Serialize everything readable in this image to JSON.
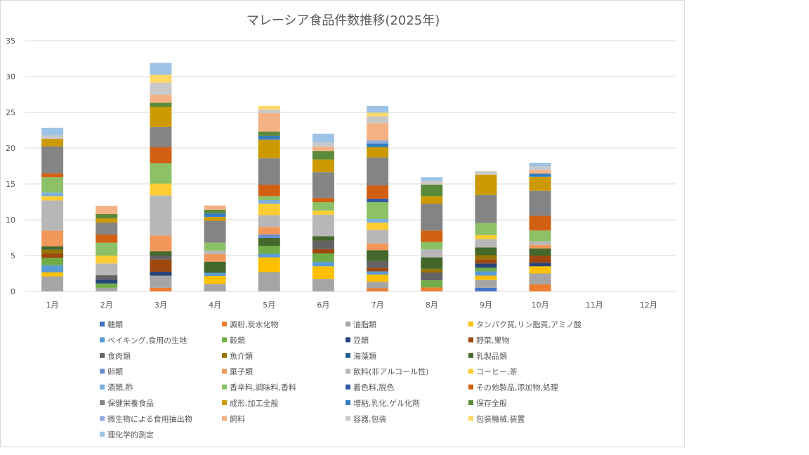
{
  "chart_data": {
    "type": "bar",
    "stacked": true,
    "title": "マレーシア食品件数推移(2025年)",
    "xlabel": "",
    "ylabel": "",
    "ylim": [
      0,
      35
    ],
    "yticks": [
      0,
      5,
      10,
      15,
      20,
      25,
      30,
      35
    ],
    "grid": true,
    "legend_position": "bottom",
    "categories": [
      "1月",
      "2月",
      "3月",
      "4月",
      "5月",
      "6月",
      "7月",
      "8月",
      "9月",
      "10月",
      "11月",
      "12月"
    ],
    "series": [
      {
        "name": "糖類",
        "color": "#4472C4",
        "values": [
          0,
          0,
          0,
          0,
          0,
          0,
          0,
          0,
          0.5,
          0,
          0,
          0
        ]
      },
      {
        "name": "澱粉,炭水化物",
        "color": "#ED7D31",
        "values": [
          0,
          0,
          0.5,
          0,
          0,
          0,
          0.45,
          0.55,
          0,
          1.0,
          0,
          0
        ]
      },
      {
        "name": "油脂類",
        "color": "#A5A5A5",
        "values": [
          2.1,
          0.5,
          1.7,
          1.05,
          2.7,
          1.75,
          0.9,
          0,
          1.1,
          1.5,
          0,
          0
        ]
      },
      {
        "name": "タンパク質,リン脂質,アミノ酸",
        "color": "#FFC000",
        "values": [
          0.55,
          0,
          0,
          1.1,
          2.05,
          1.75,
          1.0,
          0,
          0.6,
          1.0,
          0,
          0
        ]
      },
      {
        "name": "ベイキング,食用の生地",
        "color": "#5B9BD5",
        "values": [
          1.0,
          0,
          0,
          0.45,
          0.5,
          0.6,
          0.45,
          0,
          0.6,
          0,
          0,
          0
        ]
      },
      {
        "name": "穀類",
        "color": "#70AD47",
        "values": [
          1.05,
          0.6,
          0,
          0,
          1.1,
          1.2,
          0,
          1.0,
          0.5,
          0,
          0,
          0
        ]
      },
      {
        "name": "豆類",
        "color": "#264478",
        "values": [
          0,
          0.55,
          0.55,
          0,
          0,
          0,
          0,
          0,
          0.6,
          0.5,
          0,
          0
        ]
      },
      {
        "name": "野菜,果物",
        "color": "#9E480E",
        "values": [
          0.6,
          0,
          1.7,
          0,
          0,
          0.6,
          0.5,
          0,
          0.55,
          1.0,
          0,
          0
        ]
      },
      {
        "name": "食肉類",
        "color": "#636363",
        "values": [
          0,
          0.6,
          0.55,
          0,
          0,
          1.2,
          0.95,
          1.1,
          0,
          0,
          0,
          0
        ]
      },
      {
        "name": "魚介類",
        "color": "#997300",
        "values": [
          0.5,
          0,
          0,
          0,
          0,
          0,
          0,
          0.5,
          0.6,
          0,
          0,
          0
        ]
      },
      {
        "name": "海藻類",
        "color": "#255E91",
        "values": [
          0,
          0,
          0,
          0,
          0,
          0,
          0,
          0,
          0,
          0,
          0,
          0
        ]
      },
      {
        "name": "乳製品類",
        "color": "#43682B",
        "values": [
          0.5,
          0,
          0.6,
          1.55,
          1.1,
          0.6,
          1.5,
          1.6,
          1.1,
          1.0,
          0,
          0
        ]
      },
      {
        "name": "卵類",
        "color": "#698ED0",
        "values": [
          0,
          0,
          0,
          0,
          0.5,
          0,
          0,
          0,
          0,
          0,
          0,
          0
        ]
      },
      {
        "name": "菓子類",
        "color": "#F1975A",
        "values": [
          2.2,
          0,
          2.2,
          1.05,
          1.05,
          0,
          0.95,
          0,
          0,
          0.5,
          0,
          0
        ]
      },
      {
        "name": "飲料(非アルコール性)",
        "color": "#B7B7B7",
        "values": [
          4.2,
          1.65,
          5.6,
          0.5,
          1.65,
          3.0,
          1.9,
          1.1,
          1.15,
          0.5,
          0,
          0
        ]
      },
      {
        "name": "コーヒー,茶",
        "color": "#FFCD33",
        "values": [
          0.6,
          1.1,
          1.65,
          0,
          1.6,
          0.6,
          1.0,
          0,
          0.55,
          0,
          0,
          0
        ]
      },
      {
        "name": "酒類,酢",
        "color": "#7CAFDD",
        "values": [
          0.5,
          0,
          0,
          0,
          0.5,
          0,
          0.5,
          0,
          0,
          0,
          0,
          0
        ]
      },
      {
        "name": "香辛料,調味料,香料",
        "color": "#8CC168",
        "values": [
          2.15,
          1.8,
          2.85,
          1.1,
          0.55,
          1.15,
          2.35,
          1.05,
          1.7,
          1.5,
          0,
          0
        ]
      },
      {
        "name": "着色料,脱色",
        "color": "#335AA1",
        "values": [
          0,
          0,
          0,
          0,
          0,
          0,
          0.5,
          0,
          0,
          0,
          0,
          0
        ]
      },
      {
        "name": "その他製品,添加物,処理",
        "color": "#D26012",
        "values": [
          0.55,
          1.15,
          2.25,
          0,
          1.6,
          0.6,
          1.85,
          1.6,
          0,
          2.05,
          0,
          0
        ]
      },
      {
        "name": "保健栄養食品",
        "color": "#848484",
        "values": [
          3.75,
          1.65,
          2.8,
          3.05,
          3.7,
          3.6,
          3.9,
          3.75,
          3.9,
          3.5,
          0,
          0
        ]
      },
      {
        "name": "成形,加工全般",
        "color": "#CC9A00",
        "values": [
          1.05,
          0.6,
          2.8,
          0.55,
          2.6,
          1.75,
          1.45,
          1.05,
          2.85,
          1.95,
          0,
          0
        ]
      },
      {
        "name": "増粘,乳化,ゲル化剤",
        "color": "#327DC2",
        "values": [
          0,
          0,
          0,
          0.5,
          0.5,
          0,
          0.5,
          0,
          0,
          0.45,
          0,
          0
        ]
      },
      {
        "name": "保存全般",
        "color": "#5A8A39",
        "values": [
          0,
          0.6,
          0.6,
          0.5,
          0.6,
          1.2,
          0,
          1.6,
          0,
          0,
          0,
          0
        ]
      },
      {
        "name": "微生物による食用抽出物",
        "color": "#8FAADC",
        "values": [
          0,
          0,
          0,
          0,
          0,
          0,
          0.45,
          0,
          0,
          0,
          0,
          0
        ]
      },
      {
        "name": "飼料",
        "color": "#F4B183",
        "values": [
          0,
          1.15,
          1.1,
          0.6,
          2.6,
          0.6,
          2.4,
          0,
          0,
          0.5,
          0,
          0
        ]
      },
      {
        "name": "容器,包装",
        "color": "#C9C9C9",
        "values": [
          0.5,
          0,
          1.7,
          0,
          0.5,
          0.6,
          0.95,
          0.55,
          0.5,
          0.5,
          0,
          0
        ]
      },
      {
        "name": "包装機械,装置",
        "color": "#FFD966",
        "values": [
          0,
          0,
          1.1,
          0,
          0.5,
          0,
          0.5,
          0,
          0,
          0,
          0,
          0
        ]
      },
      {
        "name": "理化学的測定",
        "color": "#9DC3E6",
        "values": [
          1.05,
          0,
          1.65,
          0,
          0,
          1.2,
          0.95,
          0.5,
          0,
          0.5,
          0,
          0
        ]
      }
    ]
  }
}
